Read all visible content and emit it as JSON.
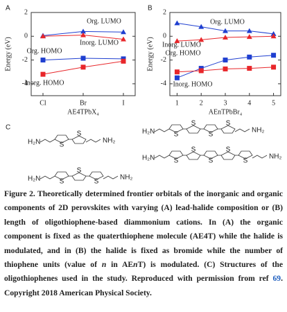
{
  "chart_data": [
    {
      "type": "line",
      "panel": "A",
      "x_label": "AE4TPbX₄",
      "y_label": "Energy (eV)",
      "categories": [
        "Cl",
        "Br",
        "I"
      ],
      "ylim": [
        -5,
        2
      ],
      "yticks": [
        2,
        0,
        -2,
        -4
      ],
      "series": [
        {
          "name": "Org. LUMO",
          "color": "#1f3fd0",
          "marker": "triangle",
          "values": [
            0.05,
            0.4,
            0.35
          ]
        },
        {
          "name": "Inorg. LUMO",
          "color": "#e8262a",
          "marker": "triangle",
          "values": [
            0.0,
            0.1,
            -0.25
          ]
        },
        {
          "name": "Org. HOMO",
          "color": "#1f3fd0",
          "marker": "square",
          "values": [
            -2.0,
            -1.85,
            -1.9
          ]
        },
        {
          "name": "Inorg. HOMO",
          "color": "#e8262a",
          "marker": "square",
          "values": [
            -3.2,
            -2.6,
            -2.1
          ]
        }
      ]
    },
    {
      "type": "line",
      "panel": "B",
      "x_label": "AEnTPbBr₄",
      "y_label": "Energy (eV)",
      "x": [
        1,
        2,
        3,
        4,
        5
      ],
      "xlim": [
        0.7,
        5.3
      ],
      "xticks": [
        1,
        2,
        3,
        4,
        5
      ],
      "ylim": [
        -5,
        2
      ],
      "yticks": [
        2,
        0,
        -2,
        -4
      ],
      "series": [
        {
          "name": "Org. LUMO",
          "color": "#1f3fd0",
          "marker": "triangle",
          "values": [
            1.1,
            0.8,
            0.45,
            0.45,
            0.2
          ]
        },
        {
          "name": "Inorg. LUMO",
          "color": "#e8262a",
          "marker": "triangle",
          "values": [
            -0.4,
            -0.3,
            -0.1,
            -0.05,
            0.0
          ]
        },
        {
          "name": "Org. HOMO",
          "color": "#1f3fd0",
          "marker": "square",
          "values": [
            -3.5,
            -2.7,
            -2.0,
            -1.75,
            -1.6
          ]
        },
        {
          "name": "Inorg. HOMO",
          "color": "#e8262a",
          "marker": "square",
          "values": [
            -3.0,
            -2.9,
            -2.75,
            -2.7,
            -2.6
          ]
        }
      ]
    }
  ],
  "structures_panel": "C",
  "structures": [
    {
      "left": "H₂N",
      "right": "NH₂",
      "ring_label": "S",
      "rings": 2
    },
    {
      "left": "H₂N",
      "right": "NH₂",
      "ring_label": "S",
      "rings": 4
    },
    {
      "left": "H₂N",
      "right": "NH₂",
      "ring_label": "S",
      "rings": 5
    },
    {
      "left": "H₂N",
      "right": "NH₂",
      "ring_label": "S",
      "rings": 3
    }
  ],
  "caption": {
    "parts": [
      {
        "style": "label",
        "text": "Figure 2."
      },
      {
        "style": "plain",
        "text": " Theoretically determined frontier orbitals of the inorganic and organic components of 2D perovskites with varying (A) lead-halide composition or (B) length of oligothiophene-based diammonium cations. In (A) the organic component is fixed as the quaterthiophene molecule (AE4T) while the halide is modulated, and in (B) the halide is fixed as bromide while the number of thiophene units (value of "
      },
      {
        "style": "italic",
        "text": "n"
      },
      {
        "style": "plain",
        "text": " in AE"
      },
      {
        "style": "italic",
        "text": "n"
      },
      {
        "style": "plain",
        "text": "T) is modulated. (C) Structures of the oligothiophenes used in the study. Reproduced with permission from ref "
      },
      {
        "style": "link",
        "text": "69"
      },
      {
        "style": "plain",
        "text": ". Copyright 2018 American Physical Society."
      }
    ]
  }
}
